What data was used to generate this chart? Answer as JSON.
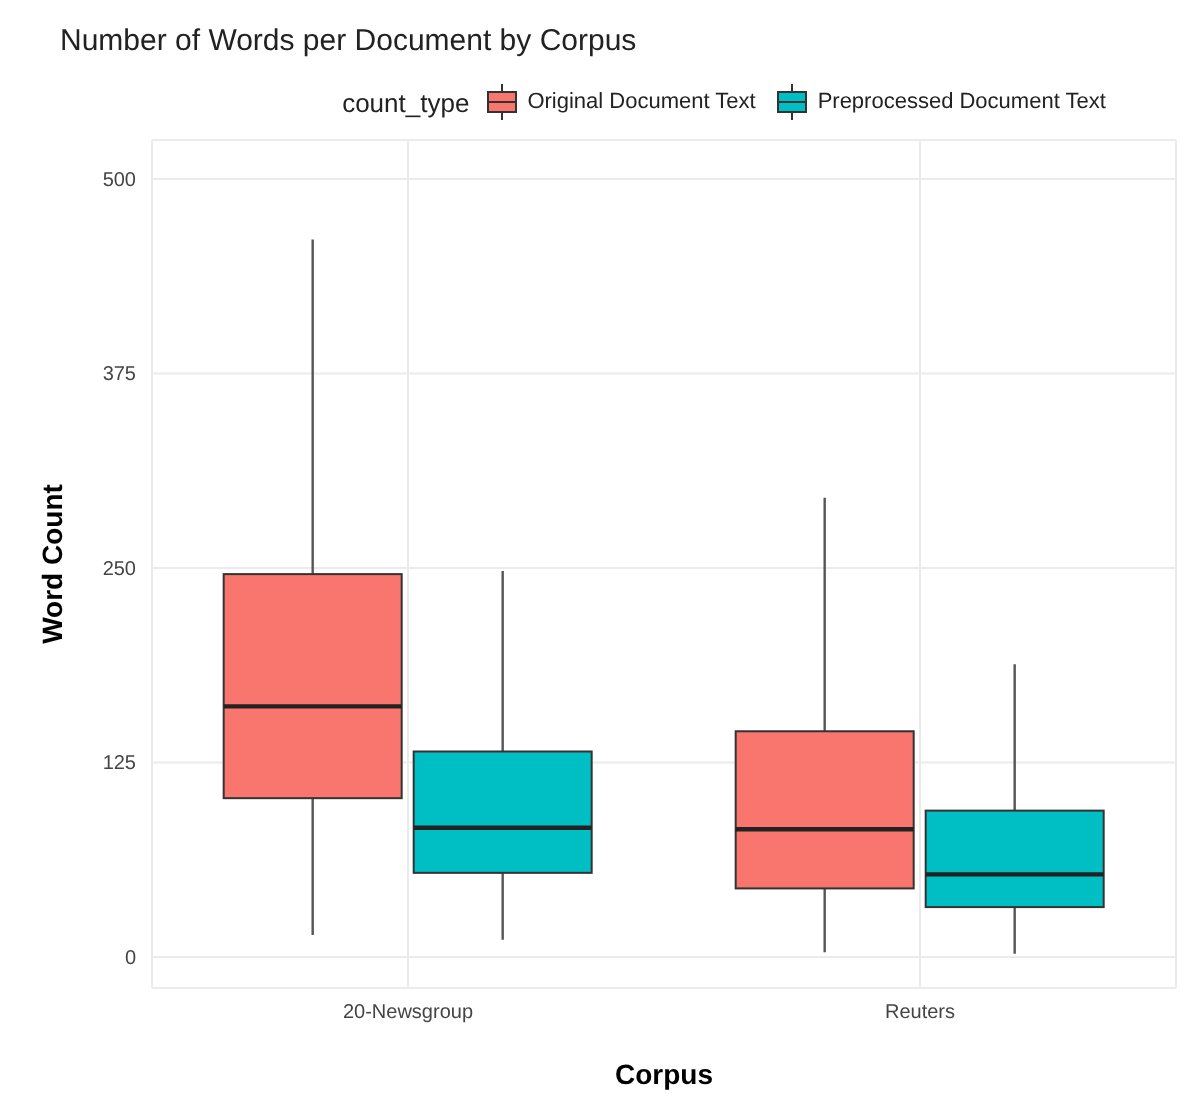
{
  "chart_data": {
    "type": "box",
    "title": "Number of Words per Document by Corpus",
    "xlabel": "Corpus",
    "ylabel": "Word Count",
    "legend_title": "count_type",
    "legend": "top",
    "grid": true,
    "categories": [
      "20-Newsgroup",
      "Reuters"
    ],
    "series": [
      {
        "name": "Original Document Text",
        "color": "#f8766d",
        "boxes": [
          {
            "low": 14,
            "q1": 102,
            "median": 161,
            "q3": 246,
            "high": 461
          },
          {
            "low": 3,
            "q1": 44,
            "median": 82,
            "q3": 145,
            "high": 295
          }
        ]
      },
      {
        "name": "Preprocessed Document Text",
        "color": "#00bfc4",
        "boxes": [
          {
            "low": 11,
            "q1": 54,
            "median": 83,
            "q3": 132,
            "high": 248
          },
          {
            "low": 2,
            "q1": 32,
            "median": 53,
            "q3": 94,
            "high": 188
          }
        ]
      }
    ],
    "ylim": [
      -20,
      525
    ],
    "yticks": [
      0,
      125,
      250,
      375,
      500
    ]
  }
}
